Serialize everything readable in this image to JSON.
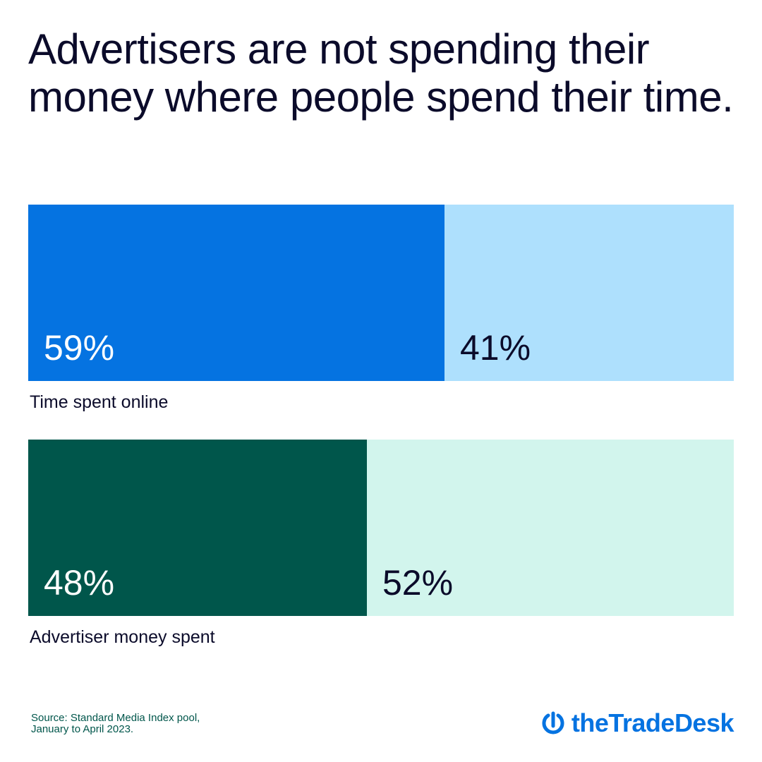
{
  "chart_data": {
    "type": "stacked_bar_horizontal",
    "title": "Advertisers are not spending their money where people spend their time.",
    "categories": [
      "Time spent online",
      "Advertiser money spent"
    ],
    "series": [
      {
        "colors": [
          "#0573e1",
          "#00564b"
        ],
        "values": [
          59,
          48
        ],
        "value_labels": [
          "59%",
          "48%"
        ]
      },
      {
        "colors": [
          "#aee0fd",
          "#d2f5ed"
        ],
        "values": [
          41,
          52
        ],
        "value_labels": [
          "41%",
          "52%"
        ]
      }
    ],
    "xlim": [
      0,
      100
    ],
    "source": "Source: Standard Media Index pool, January to April 2023.",
    "brand": "theTradeDesk"
  }
}
